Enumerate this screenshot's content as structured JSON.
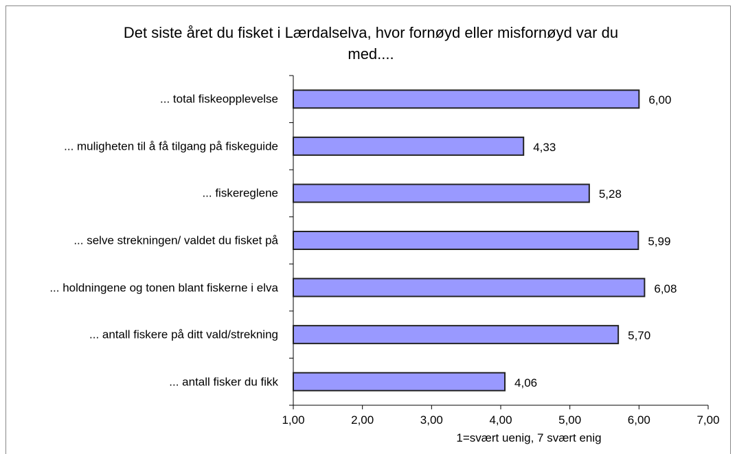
{
  "chart_data": {
    "type": "bar",
    "orientation": "horizontal",
    "title": "Det siste året du fisket i Lærdalselva, hvor fornøyd eller misfornøyd var du med....",
    "categories": [
      "... total fiskeopplevelse",
      "... muligheten til å få tilgang på fiskeguide",
      "... fiskereglene",
      "... selve strekningen/ valdet du fisket på",
      "... holdningene og tonen blant fiskerne i elva",
      "... antall fiskere på ditt vald/strekning",
      "... antall fisker du fikk"
    ],
    "values": [
      6.0,
      4.33,
      5.28,
      5.99,
      6.08,
      5.7,
      4.06
    ],
    "value_labels": [
      "6,00",
      "4,33",
      "5,28",
      "5,99",
      "6,08",
      "5,70",
      "4,06"
    ],
    "color": "#9999ff",
    "xlabel": "1=svært uenig, 7 svært enig",
    "xlim": [
      1,
      7
    ],
    "xticks": [
      {
        "value": 1,
        "label": "1,00"
      },
      {
        "value": 2,
        "label": "2,00"
      },
      {
        "value": 3,
        "label": "3,00"
      },
      {
        "value": 4,
        "label": "4,00"
      },
      {
        "value": 5,
        "label": "5,00"
      },
      {
        "value": 6,
        "label": "6,00"
      },
      {
        "value": 7,
        "label": "7,00"
      }
    ]
  }
}
